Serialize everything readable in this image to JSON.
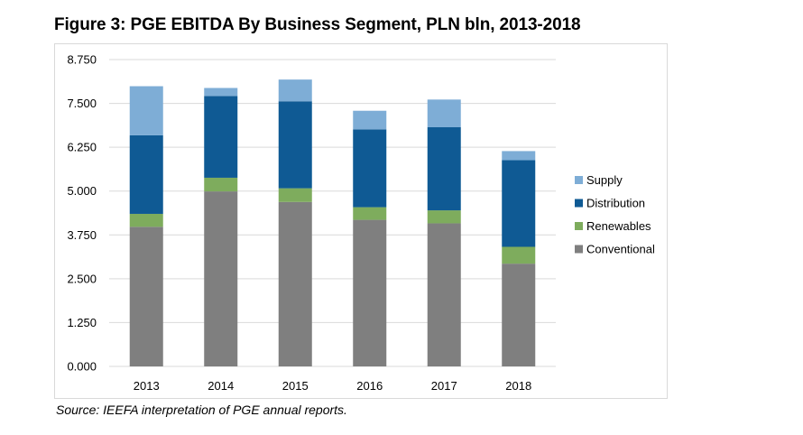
{
  "figure_title": "Figure 3: PGE EBITDA By Business Segment, PLN bln, 2013-2018",
  "source": "Source: IEEFA interpretation of PGE annual reports.",
  "chart_data": {
    "type": "bar",
    "stacked": true,
    "title": "Figure 3: PGE EBITDA By Business Segment, PLN bln, 2013-2018",
    "xlabel": "",
    "ylabel": "",
    "ylim": [
      0,
      8.75
    ],
    "yticks": [
      0,
      1.25,
      2.5,
      3.75,
      5,
      6.25,
      7.5,
      8.75
    ],
    "ytick_labels": [
      "0.000",
      "1.250",
      "2.500",
      "3.750",
      "5.000",
      "6.250",
      "7.500",
      "8.750"
    ],
    "grid": true,
    "legend_position": "right",
    "categories": [
      "2013",
      "2014",
      "2015",
      "2016",
      "2017",
      "2018"
    ],
    "series": [
      {
        "name": "Conventional",
        "color": "#7f7f7f",
        "values": [
          3.98,
          4.99,
          4.69,
          4.18,
          4.08,
          2.93
        ]
      },
      {
        "name": "Renewables",
        "color": "#7eac5d",
        "values": [
          0.37,
          0.39,
          0.39,
          0.36,
          0.37,
          0.48
        ]
      },
      {
        "name": "Distribution",
        "color": "#0f5a94",
        "values": [
          2.24,
          2.33,
          2.48,
          2.22,
          2.37,
          2.47
        ]
      },
      {
        "name": "Supply",
        "color": "#7eadd6",
        "values": [
          1.4,
          0.23,
          0.62,
          0.53,
          0.79,
          0.26
        ]
      }
    ],
    "legend_order": [
      "Supply",
      "Distribution",
      "Renewables",
      "Conventional"
    ]
  }
}
